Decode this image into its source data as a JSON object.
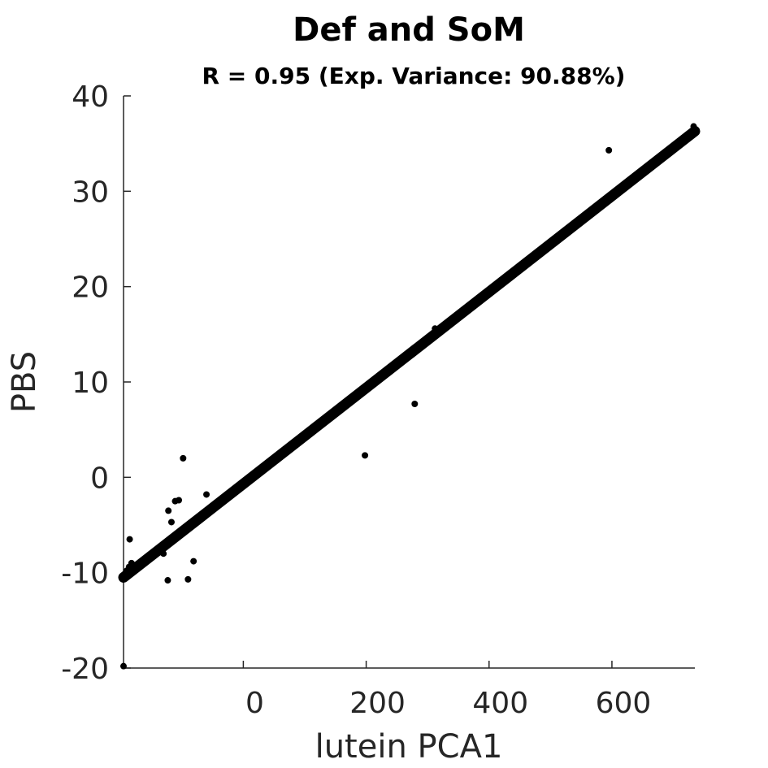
{
  "chart_data": {
    "type": "scatter",
    "title": "Def and SoM",
    "subtitle": "R = 0.95 (Exp. Variance: 90.88%)",
    "xlabel": "lutein PCA1",
    "ylabel": "PBS",
    "xlim": [
      -195,
      735
    ],
    "ylim": [
      -20,
      40
    ],
    "xticks": [
      0,
      200,
      400,
      600
    ],
    "yticks": [
      -20,
      -10,
      0,
      10,
      20,
      30,
      40
    ],
    "grid": false,
    "fit_line": {
      "x": [
        -195,
        735
      ],
      "y": [
        -10.5,
        36.3
      ]
    },
    "points": [
      {
        "x": -195,
        "y": -19.8
      },
      {
        "x": -185,
        "y": -6.5
      },
      {
        "x": -182,
        "y": -9.0
      },
      {
        "x": -186,
        "y": -9.4
      },
      {
        "x": -190,
        "y": -9.8
      },
      {
        "x": -183,
        "y": -9.6
      },
      {
        "x": -178,
        "y": -9.2
      },
      {
        "x": -192,
        "y": -10.3
      },
      {
        "x": -188,
        "y": -10.0
      },
      {
        "x": -175,
        "y": -9.3
      },
      {
        "x": -130,
        "y": -8.0
      },
      {
        "x": -123,
        "y": -10.8
      },
      {
        "x": -117,
        "y": -4.7
      },
      {
        "x": -122,
        "y": -3.5
      },
      {
        "x": -111,
        "y": -2.5
      },
      {
        "x": -105,
        "y": -2.4
      },
      {
        "x": -98,
        "y": 2.0
      },
      {
        "x": -90,
        "y": -10.7
      },
      {
        "x": -81,
        "y": -8.8
      },
      {
        "x": -60,
        "y": -1.8
      },
      {
        "x": 198,
        "y": 2.3
      },
      {
        "x": 279,
        "y": 7.7
      },
      {
        "x": 312,
        "y": 15.6
      },
      {
        "x": 595,
        "y": 34.3
      },
      {
        "x": 733,
        "y": 36.8
      },
      {
        "x": 733,
        "y": 36.2
      }
    ]
  }
}
